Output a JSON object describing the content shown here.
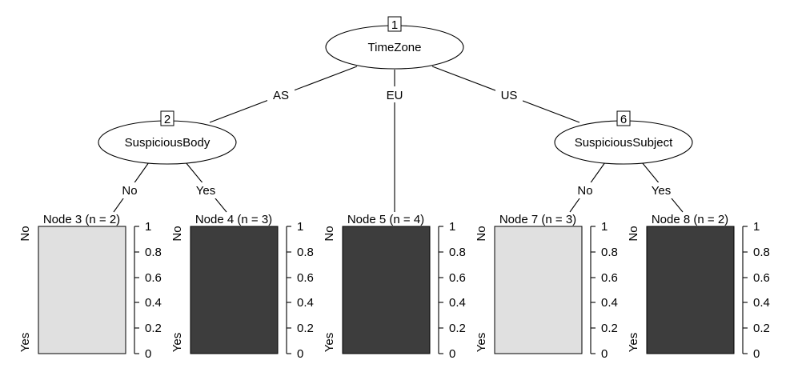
{
  "tree": {
    "inner_nodes": [
      {
        "id": "1",
        "label": "TimeZone"
      },
      {
        "id": "2",
        "label": "SuspiciousBody"
      },
      {
        "id": "6",
        "label": "SuspiciousSubject"
      }
    ],
    "edge_labels": {
      "as": "AS",
      "eu": "EU",
      "us": "US",
      "n2_no": "No",
      "n2_yes": "Yes",
      "n6_no": "No",
      "n6_yes": "Yes"
    },
    "leaves": [
      {
        "id": "3",
        "title": "Node 3 (n = 2)",
        "prop_no": 1.0
      },
      {
        "id": "4",
        "title": "Node 4 (n = 3)",
        "prop_no": 0.0
      },
      {
        "id": "5",
        "title": "Node 5 (n = 4)",
        "prop_no": 0.0
      },
      {
        "id": "7",
        "title": "Node 7 (n = 3)",
        "prop_no": 1.0
      },
      {
        "id": "8",
        "title": "Node 8 (n = 2)",
        "prop_no": 0.0
      }
    ],
    "class_labels": {
      "top": "No",
      "bottom": "Yes"
    },
    "y_ticks": [
      "1",
      "0.8",
      "0.6",
      "0.4",
      "0.2",
      "0"
    ],
    "colors": {
      "no_class": "#e0e0e0",
      "yes_class": "#3d3d3d"
    }
  }
}
